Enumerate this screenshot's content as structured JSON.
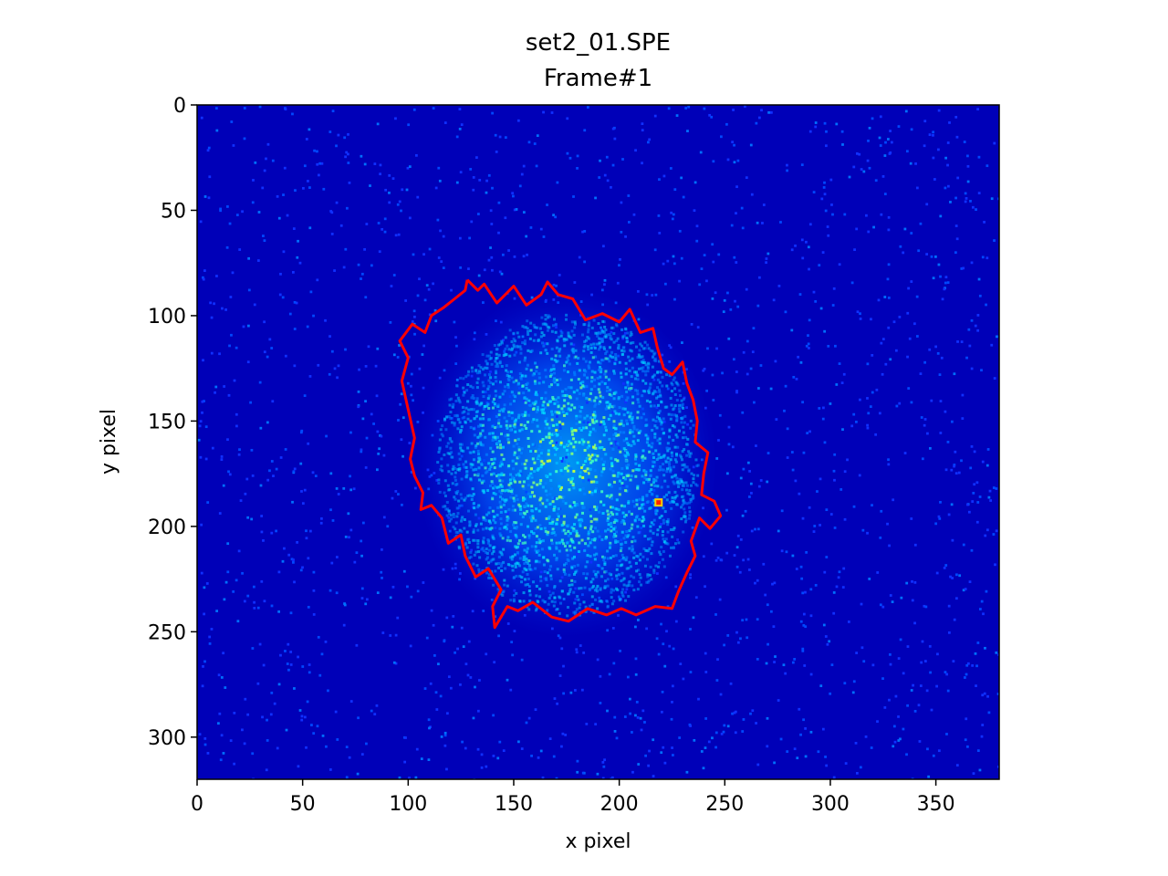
{
  "chart_data": {
    "type": "heatmap",
    "title": "set2_01.SPE",
    "subtitle": "Frame#1",
    "xlabel": "x pixel",
    "ylabel": "y pixel",
    "xlim": [
      0,
      380
    ],
    "ylim": [
      320,
      0
    ],
    "y_inverted": true,
    "xticks": [
      0,
      50,
      100,
      150,
      200,
      250,
      300,
      350
    ],
    "yticks": [
      0,
      50,
      100,
      150,
      200,
      250,
      300
    ],
    "colormap": "jet",
    "grid": false,
    "background_level_color": "#0000b8",
    "hotspot": {
      "x": 218,
      "y": 188
    },
    "contour": {
      "color": "#ff0000",
      "points": [
        [
          128,
          83
        ],
        [
          133,
          88
        ],
        [
          136,
          85
        ],
        [
          142,
          94
        ],
        [
          150,
          86
        ],
        [
          156,
          95
        ],
        [
          163,
          90
        ],
        [
          166,
          84
        ],
        [
          171,
          90
        ],
        [
          178,
          92
        ],
        [
          184,
          102
        ],
        [
          192,
          99
        ],
        [
          200,
          103
        ],
        [
          205,
          97
        ],
        [
          210,
          108
        ],
        [
          216,
          106
        ],
        [
          218,
          115
        ],
        [
          221,
          125
        ],
        [
          225,
          128
        ],
        [
          230,
          122
        ],
        [
          232,
          132
        ],
        [
          235,
          140
        ],
        [
          237,
          150
        ],
        [
          236,
          160
        ],
        [
          242,
          165
        ],
        [
          240,
          175
        ],
        [
          239,
          185
        ],
        [
          245,
          188
        ],
        [
          248,
          195
        ],
        [
          243,
          201
        ],
        [
          238,
          196
        ],
        [
          234,
          207
        ],
        [
          236,
          214
        ],
        [
          232,
          222
        ],
        [
          228,
          231
        ],
        [
          225,
          239
        ],
        [
          217,
          238
        ],
        [
          208,
          242
        ],
        [
          201,
          239
        ],
        [
          194,
          242
        ],
        [
          185,
          239
        ],
        [
          176,
          245
        ],
        [
          168,
          243
        ],
        [
          159,
          236
        ],
        [
          152,
          240
        ],
        [
          147,
          238
        ],
        [
          141,
          248
        ],
        [
          140,
          238
        ],
        [
          144,
          230
        ],
        [
          138,
          220
        ],
        [
          132,
          224
        ],
        [
          127,
          214
        ],
        [
          125,
          204
        ],
        [
          119,
          208
        ],
        [
          116,
          196
        ],
        [
          111,
          190
        ],
        [
          106,
          192
        ],
        [
          107,
          184
        ],
        [
          103,
          176
        ],
        [
          101,
          168
        ],
        [
          103,
          158
        ],
        [
          101,
          149
        ],
        [
          99,
          140
        ],
        [
          97,
          131
        ],
        [
          100,
          120
        ],
        [
          96,
          112
        ],
        [
          102,
          104
        ],
        [
          108,
          108
        ],
        [
          111,
          100
        ],
        [
          117,
          96
        ],
        [
          122,
          92
        ],
        [
          127,
          88
        ],
        [
          128,
          83
        ]
      ]
    }
  }
}
